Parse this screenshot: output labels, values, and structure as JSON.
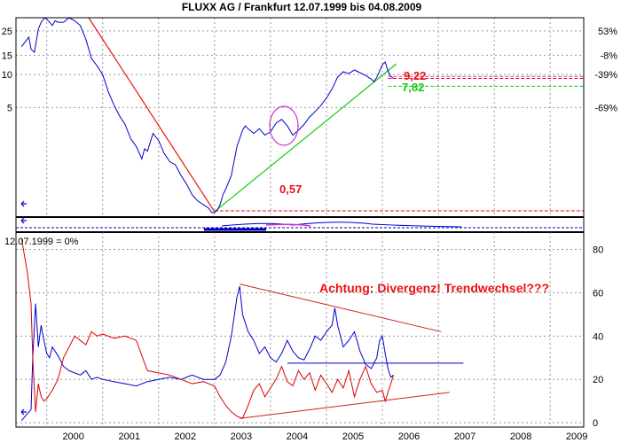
{
  "chart_data": [
    {
      "type": "line",
      "title": "FLUXX AG / Frankfurt 12.07.1999 bis 04.08.2009",
      "y_scale": "log",
      "ylim": [
        0.5,
        33
      ],
      "y_ticks_left": [
        "25",
        "15",
        "10",
        "5"
      ],
      "y_tick_values_left": [
        25,
        15,
        10,
        5
      ],
      "y_ticks_right": [
        "53%",
        "-8%",
        "-39%",
        "-69%"
      ],
      "y_tick_values_right": [
        25,
        15,
        10,
        5
      ],
      "xlim": [
        1999.45,
        2009.6
      ],
      "x_ticks": [
        "2000",
        "2001",
        "2002",
        "2003",
        "2004",
        "2005",
        "2006",
        "2007",
        "2008",
        "2009"
      ],
      "x_tick_values": [
        2000.0,
        2001.0,
        2002.0,
        2003.0,
        2004.0,
        2005.0,
        2006.0,
        2007.0,
        2008.0,
        2009.0
      ],
      "grid": true,
      "series": [
        {
          "color": "#0000cc",
          "x": [
            1999.55,
            1999.62,
            1999.68,
            1999.72,
            1999.78,
            1999.85,
            1999.9,
            1999.96,
            2000.0,
            2000.05,
            2000.1,
            2000.15,
            2000.2,
            2000.3,
            2000.4,
            2000.5,
            2000.6,
            2000.7,
            2000.8,
            2000.9,
            2001.0,
            2001.1,
            2001.2,
            2001.3,
            2001.4,
            2001.5,
            2001.6,
            2001.7,
            2001.75,
            2001.8,
            2001.9,
            2002.0,
            2002.1,
            2002.2,
            2002.3,
            2002.4,
            2002.5,
            2002.6,
            2002.7,
            2002.8,
            2002.9,
            2002.95,
            2003.0,
            2003.05,
            2003.1,
            2003.15,
            2003.2,
            2003.3,
            2003.4,
            2003.5,
            2003.55,
            2003.6,
            2003.7,
            2003.8,
            2003.9,
            2004.0,
            2004.1,
            2004.2,
            2004.3,
            2004.4,
            2004.5,
            2004.6,
            2004.7,
            2004.8,
            2004.9,
            2005.0,
            2005.1,
            2005.2,
            2005.3,
            2005.4,
            2005.5,
            2005.6,
            2005.7,
            2005.8,
            2005.85,
            2005.9,
            2006.0,
            2006.05,
            2006.1,
            2006.15,
            2006.2
          ],
          "y": [
            18,
            20,
            22,
            17,
            16,
            26,
            30,
            33,
            32,
            30,
            28,
            31,
            30,
            30,
            33,
            31,
            28,
            21,
            14,
            12,
            10,
            7,
            5.3,
            4.2,
            3.5,
            2.6,
            2.2,
            1.7,
            2.1,
            2.0,
            2.9,
            2.5,
            1.9,
            1.6,
            1.5,
            1.2,
            1.0,
            0.8,
            0.7,
            0.65,
            0.6,
            0.55,
            0.55,
            0.58,
            0.65,
            0.8,
            0.9,
            1.2,
            2.2,
            3.1,
            3.4,
            3.2,
            2.9,
            3.2,
            2.8,
            3.0,
            3.6,
            3.9,
            3.4,
            2.8,
            3.1,
            3.5,
            4.1,
            4.6,
            5.2,
            6.1,
            7.4,
            9.5,
            10.6,
            10.2,
            11.0,
            10.4,
            9.8,
            9.1,
            8.6,
            9.4,
            12.3,
            13.0,
            10.8,
            9.6,
            9.22
          ]
        }
      ],
      "annotations": [
        {
          "text": "9,22",
          "color": "#ee1111"
        },
        {
          "text": "7,82",
          "color": "#11cc11"
        },
        {
          "text": "0,57",
          "color": "#ee1111"
        }
      ],
      "reference_lines": [
        {
          "value": 9.22,
          "color": "#ee1111",
          "style": "dashed"
        },
        {
          "value": 7.82,
          "color": "#11cc11",
          "style": "dashed"
        },
        {
          "value": 0.57,
          "color": "#ee1111",
          "style": "dashed"
        },
        {
          "value": 9.6,
          "color": "#dd33dd",
          "style": "dashed"
        }
      ],
      "trend_lines": [
        {
          "color": "#ee1111",
          "x": [
            2000.75,
            2003.0
          ],
          "y": [
            33,
            0.56
          ]
        },
        {
          "color": "#11cc11",
          "x": [
            2003.0,
            2006.25
          ],
          "y": [
            0.56,
            12.5
          ]
        }
      ]
    },
    {
      "type": "line",
      "title": "",
      "legend_text": "12.07.1999 = 0%",
      "xlim": [
        1999.45,
        2009.6
      ],
      "ylim": [
        -2,
        88
      ],
      "y_ticks_right": [
        "80",
        "60",
        "40",
        "20",
        "0"
      ],
      "y_tick_values_right": [
        80,
        60,
        40,
        20,
        0
      ],
      "grid": true,
      "annotation": "Achtung: Divergenz! Trendwechsel???",
      "series": [
        {
          "color": "#0000cc",
          "x": [
            1999.55,
            1999.65,
            1999.72,
            1999.75,
            1999.8,
            1999.85,
            1999.9,
            1999.95,
            2000.0,
            2000.05,
            2000.1,
            2000.2,
            2000.3,
            2000.4,
            2000.5,
            2000.6,
            2000.7,
            2000.8,
            2000.9,
            2001.0,
            2001.2,
            2001.4,
            2001.6,
            2001.8,
            2002.0,
            2002.2,
            2002.4,
            2002.6,
            2002.8,
            2003.0,
            2003.1,
            2003.2,
            2003.3,
            2003.4,
            2003.45,
            2003.5,
            2003.6,
            2003.7,
            2003.8,
            2003.9,
            2004.0,
            2004.1,
            2004.2,
            2004.3,
            2004.4,
            2004.5,
            2004.6,
            2004.7,
            2004.8,
            2004.9,
            2005.0,
            2005.1,
            2005.15,
            2005.2,
            2005.3,
            2005.4,
            2005.5,
            2005.6,
            2005.7,
            2005.8,
            2005.9,
            2005.95,
            2006.0,
            2006.05,
            2006.1,
            2006.15,
            2006.2
          ],
          "y": [
            1,
            4,
            6,
            30,
            55,
            35,
            45,
            38,
            32,
            30,
            35,
            31,
            26,
            24,
            23,
            22,
            24,
            20,
            21,
            20,
            19,
            18,
            17,
            19,
            20,
            21,
            20,
            22,
            20,
            20,
            22,
            28,
            40,
            58,
            63,
            50,
            42,
            38,
            32,
            35,
            30,
            28,
            32,
            38,
            33,
            30,
            29,
            34,
            40,
            38,
            42,
            45,
            53,
            45,
            35,
            38,
            42,
            33,
            27,
            25,
            30,
            38,
            40,
            32,
            25,
            21,
            22
          ]
        },
        {
          "color": "#dd0000",
          "x": [
            1999.55,
            1999.65,
            1999.72,
            1999.75,
            1999.8,
            1999.85,
            1999.9,
            1999.95,
            2000.0,
            2000.1,
            2000.2,
            2000.3,
            2000.4,
            2000.5,
            2000.6,
            2000.7,
            2000.8,
            2000.9,
            2001.0,
            2001.2,
            2001.4,
            2001.6,
            2001.8,
            2002.0,
            2002.2,
            2002.4,
            2002.6,
            2002.8,
            2003.0,
            2003.1,
            2003.2,
            2003.3,
            2003.4,
            2003.5,
            2003.6,
            2003.7,
            2003.8,
            2003.9,
            2004.0,
            2004.1,
            2004.2,
            2004.3,
            2004.4,
            2004.5,
            2004.6,
            2004.7,
            2004.8,
            2004.9,
            2005.0,
            2005.1,
            2005.2,
            2005.3,
            2005.4,
            2005.5,
            2005.6,
            2005.7,
            2005.8,
            2005.9,
            2006.0,
            2006.05,
            2006.1,
            2006.15,
            2006.2
          ],
          "y": [
            85,
            70,
            55,
            30,
            5,
            18,
            12,
            10,
            11,
            15,
            20,
            30,
            35,
            40,
            38,
            36,
            42,
            40,
            41,
            39,
            40,
            38,
            24,
            23,
            22,
            20,
            18,
            19,
            17,
            12,
            8,
            5,
            3,
            2,
            8,
            15,
            18,
            12,
            16,
            20,
            26,
            19,
            17,
            24,
            20,
            23,
            15,
            22,
            18,
            14,
            20,
            16,
            24,
            12,
            20,
            26,
            18,
            14,
            15,
            10,
            14,
            18,
            22
          ]
        }
      ],
      "trend_lines": [
        {
          "color": "#cc2222",
          "x": [
            2003.45,
            2007.05
          ],
          "y": [
            64,
            42
          ]
        },
        {
          "color": "#cc2222",
          "x": [
            2003.45,
            2007.2
          ],
          "y": [
            2,
            14
          ]
        },
        {
          "color": "#0000cc",
          "x": [
            2004.3,
            2007.45
          ],
          "y": [
            27.5,
            27.5
          ]
        }
      ]
    }
  ]
}
